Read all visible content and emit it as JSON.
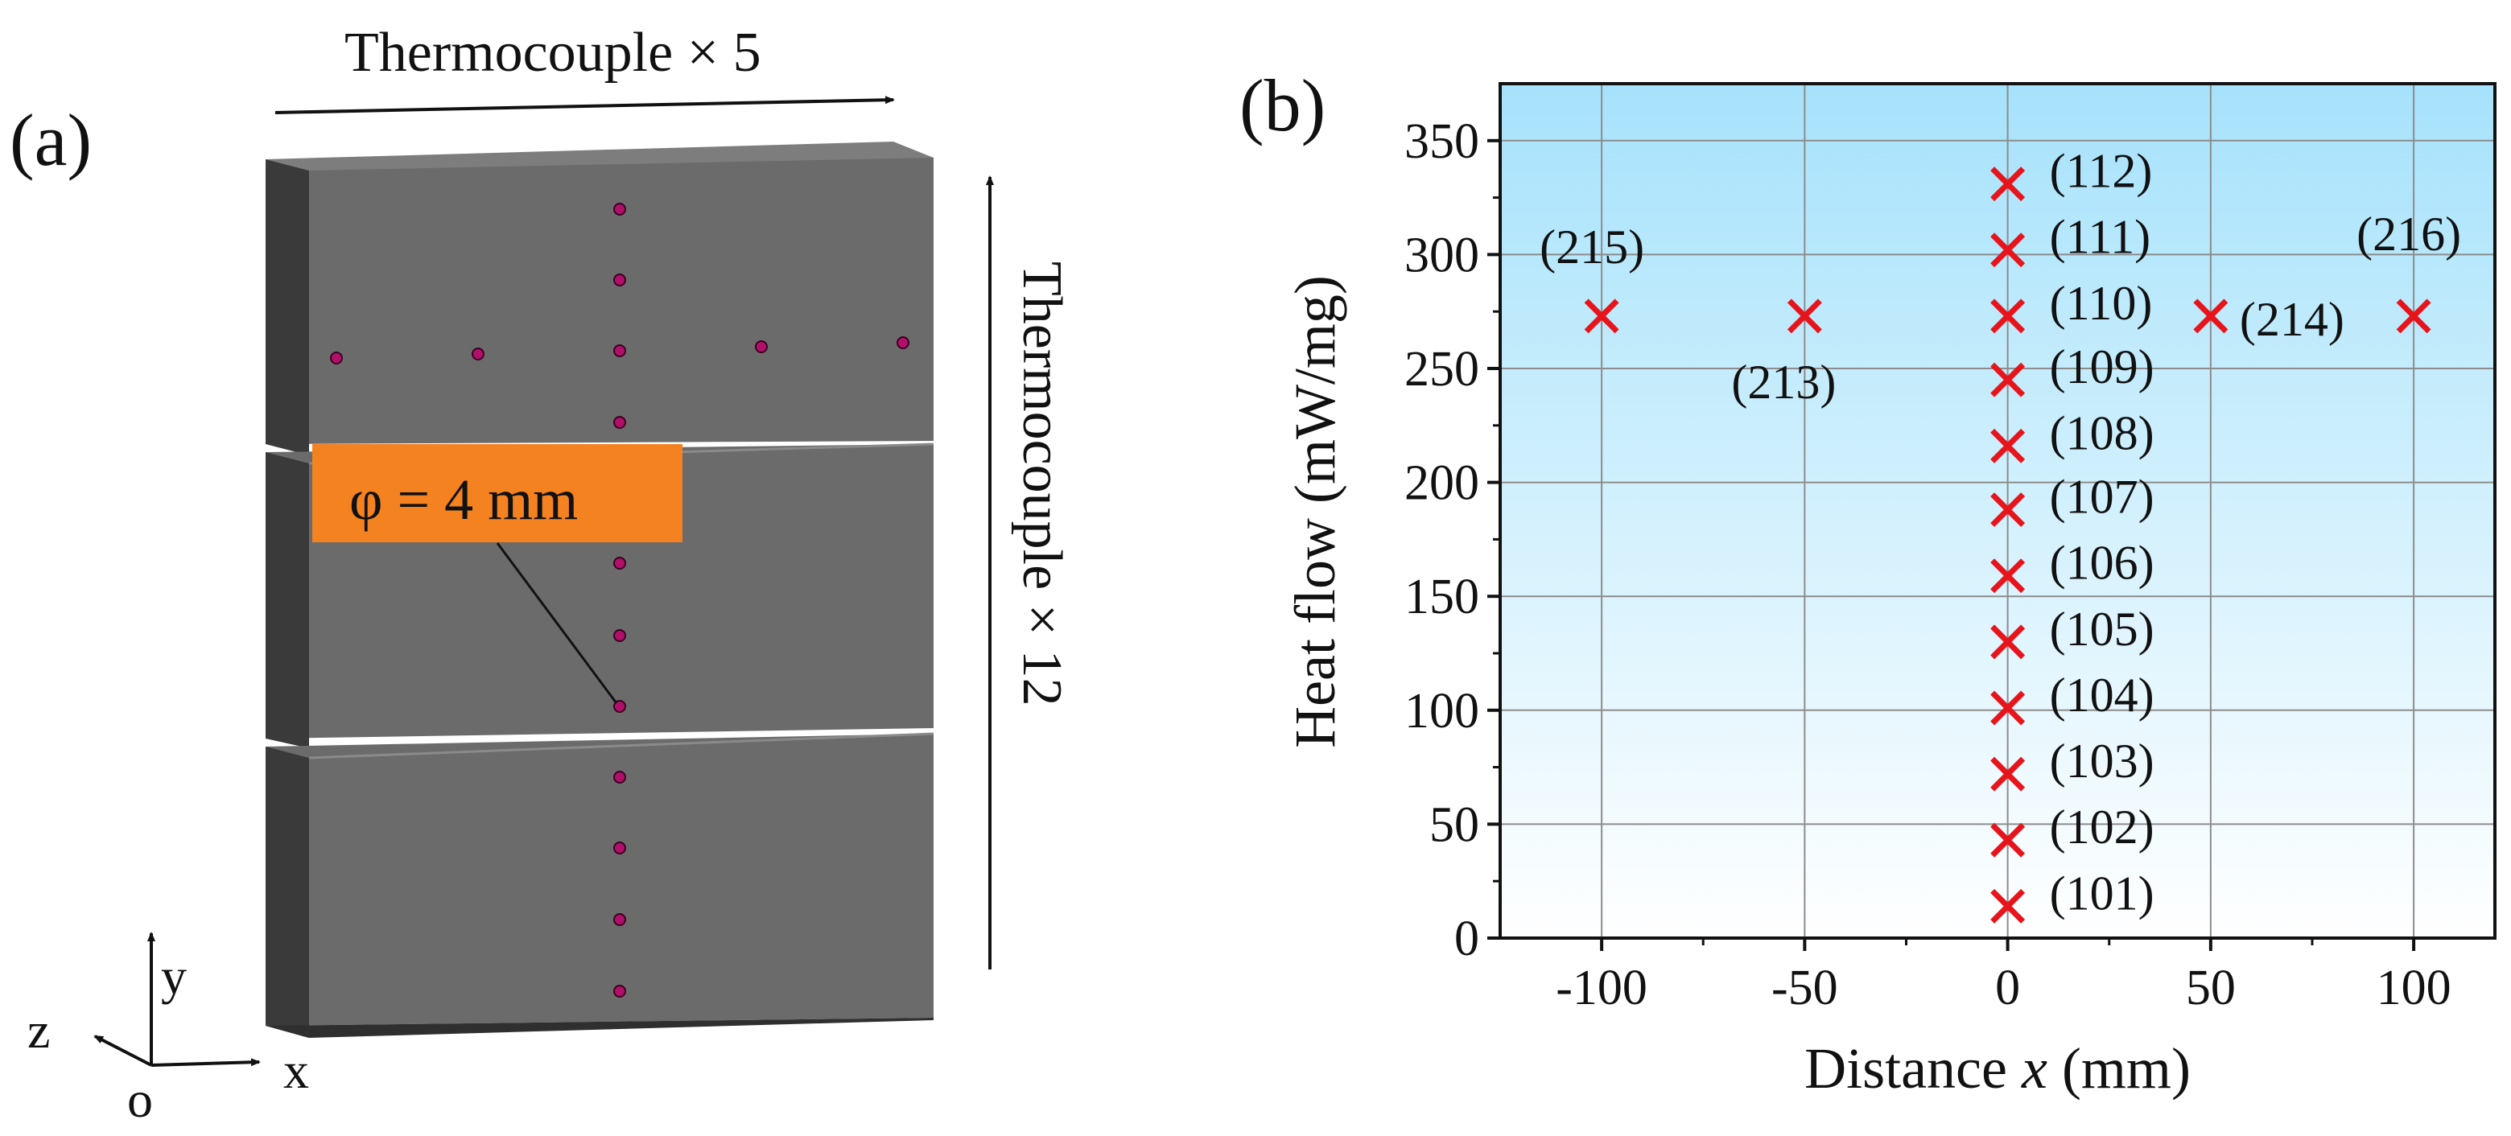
{
  "panel_a": {
    "label": "(a)",
    "thermocouple_x": "Thermocouple × 5",
    "thermocouple_y": "Thermocouple × 12",
    "callout": "φ = 4 mm",
    "axis_y": "y",
    "axis_x": "x",
    "axis_z": "z",
    "axis_o": "o",
    "colors": {
      "block_front": "#6b6b6b",
      "block_side": "#3a3a3a",
      "block_top": "#7d7d7d",
      "dot": "#b0106a",
      "callout_bg": "#f58220"
    }
  },
  "panel_b": {
    "label": "(b)"
  },
  "chart_data": {
    "type": "scatter",
    "xlabel_prefix": "Distance ",
    "xlabel_var": "x",
    "xlabel_suffix": " (mm)",
    "ylabel": "Heat flow (mW/mg)",
    "xlim": [
      -125,
      120
    ],
    "ylim": [
      0,
      375
    ],
    "xticks": [
      -100,
      -50,
      0,
      50,
      100
    ],
    "xtick_labels": [
      "-100",
      "-50",
      "0",
      "50",
      "100"
    ],
    "yticks": [
      0,
      50,
      100,
      150,
      200,
      250,
      300,
      350
    ],
    "ytick_labels": [
      "0",
      "50",
      "100",
      "150",
      "200",
      "250",
      "300",
      "350"
    ],
    "grid": true,
    "marker": "x",
    "marker_color": "#e8141c",
    "background_gradient": [
      "#a6e2fb",
      "#ffffff"
    ],
    "points": [
      {
        "x": 0,
        "y": 14,
        "label": "(101)"
      },
      {
        "x": 0,
        "y": 43,
        "label": "(102)"
      },
      {
        "x": 0,
        "y": 72,
        "label": "(103)"
      },
      {
        "x": 0,
        "y": 101,
        "label": "(104)"
      },
      {
        "x": 0,
        "y": 130,
        "label": "(105)"
      },
      {
        "x": 0,
        "y": 159,
        "label": "(106)"
      },
      {
        "x": 0,
        "y": 188,
        "label": "(107)"
      },
      {
        "x": 0,
        "y": 216,
        "label": "(108)"
      },
      {
        "x": 0,
        "y": 245,
        "label": "(109)"
      },
      {
        "x": 0,
        "y": 273,
        "label": "(110)"
      },
      {
        "x": 0,
        "y": 302,
        "label": "(111)"
      },
      {
        "x": 0,
        "y": 331,
        "label": "(112)"
      },
      {
        "x": -50,
        "y": 273,
        "label": "(213)"
      },
      {
        "x": 50,
        "y": 273,
        "label": "(214)"
      },
      {
        "x": -100,
        "y": 273,
        "label": "(215)"
      },
      {
        "x": 100,
        "y": 273,
        "label": "(216)"
      }
    ]
  }
}
